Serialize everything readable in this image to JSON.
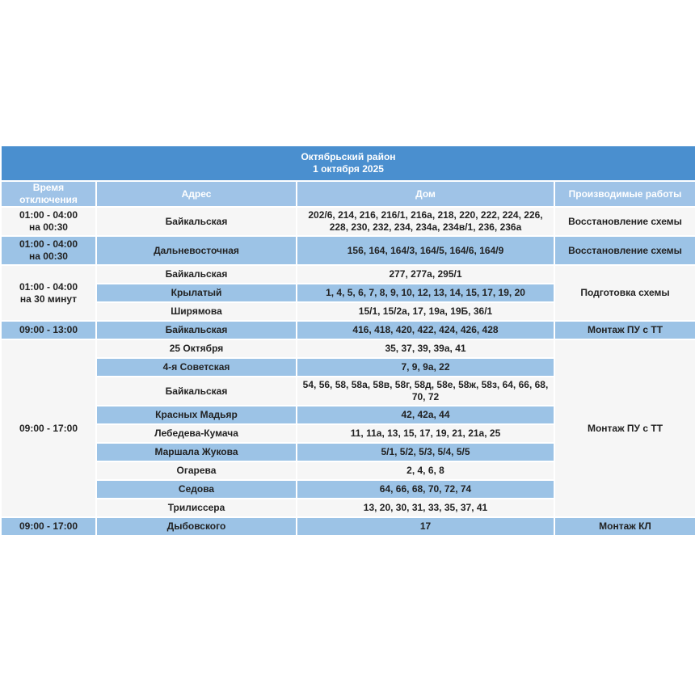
{
  "title": {
    "district": "Октябрьский район",
    "date": "1 октября 2025"
  },
  "headers": [
    "Время отключения",
    "Адрес",
    "Дом",
    "Производимые работы"
  ],
  "colors": {
    "title_bg": "#4a8fcf",
    "header_bg": "#9fc3e7",
    "row_blue": "#9cc3e6",
    "row_light": "#f6f6f6"
  },
  "groups": [
    {
      "time": "01:00 - 04:00\nна 00:30",
      "works": "Восстановление схемы",
      "rows": [
        {
          "street": "Байкальская",
          "houses": "202/6, 214, 216, 216/1, 216а, 218, 220, 222, 224, 226, 228, 230, 232, 234, 234а, 234в/1, 236, 236а",
          "shade": "light"
        }
      ]
    },
    {
      "time": "01:00 - 04:00\nна 00:30",
      "works": "Восстановление схемы",
      "rows": [
        {
          "street": "Дальневосточная",
          "houses": "156, 164, 164/3, 164/5, 164/6, 164/9",
          "shade": "blue"
        }
      ]
    },
    {
      "time": "01:00 - 04:00\nна 30 минут",
      "works": "Подготовка схемы",
      "rows": [
        {
          "street": "Байкальская",
          "houses": "277, 277а, 295/1",
          "shade": "light"
        },
        {
          "street": "Крылатый",
          "houses": "1, 4, 5, 6, 7, 8, 9, 10, 12, 13, 14, 15, 17, 19, 20",
          "shade": "blue"
        },
        {
          "street": "Ширямова",
          "houses": "15/1, 15/2а, 17, 19а, 19Б, 36/1",
          "shade": "light"
        }
      ]
    },
    {
      "time": "09:00 - 13:00",
      "works": "Монтаж ПУ с ТТ",
      "rows": [
        {
          "street": "Байкальская",
          "houses": "416, 418, 420, 422, 424, 426, 428",
          "shade": "blue"
        }
      ]
    },
    {
      "time": "09:00 - 17:00",
      "works": "Монтаж ПУ с ТТ",
      "rows": [
        {
          "street": "25 Октября",
          "houses": "35, 37, 39, 39а, 41",
          "shade": "light"
        },
        {
          "street": "4-я Советская",
          "houses": "7, 9, 9а, 22",
          "shade": "blue"
        },
        {
          "street": "Байкальская",
          "houses": "54, 56, 58, 58а, 58в, 58г, 58д, 58е, 58ж, 58з, 64, 66, 68, 70, 72",
          "shade": "light"
        },
        {
          "street": "Красных Мадьяр",
          "houses": "42, 42а, 44",
          "shade": "blue"
        },
        {
          "street": "Лебедева-Кумача",
          "houses": "11, 11а, 13, 15, 17, 19, 21, 21а, 25",
          "shade": "light"
        },
        {
          "street": "Маршала Жукова",
          "houses": "5/1, 5/2, 5/3, 5/4, 5/5",
          "shade": "blue"
        },
        {
          "street": "Огарева",
          "houses": "2, 4, 6, 8",
          "shade": "light"
        },
        {
          "street": "Седова",
          "houses": "64, 66, 68, 70, 72, 74",
          "shade": "blue"
        },
        {
          "street": "Трилиссера",
          "houses": "13, 20, 30, 31, 33, 35, 37, 41",
          "shade": "light"
        }
      ]
    },
    {
      "time": "09:00 - 17:00",
      "works": "Монтаж КЛ",
      "rows": [
        {
          "street": "Дыбовского",
          "houses": "17",
          "shade": "blue"
        }
      ]
    }
  ]
}
